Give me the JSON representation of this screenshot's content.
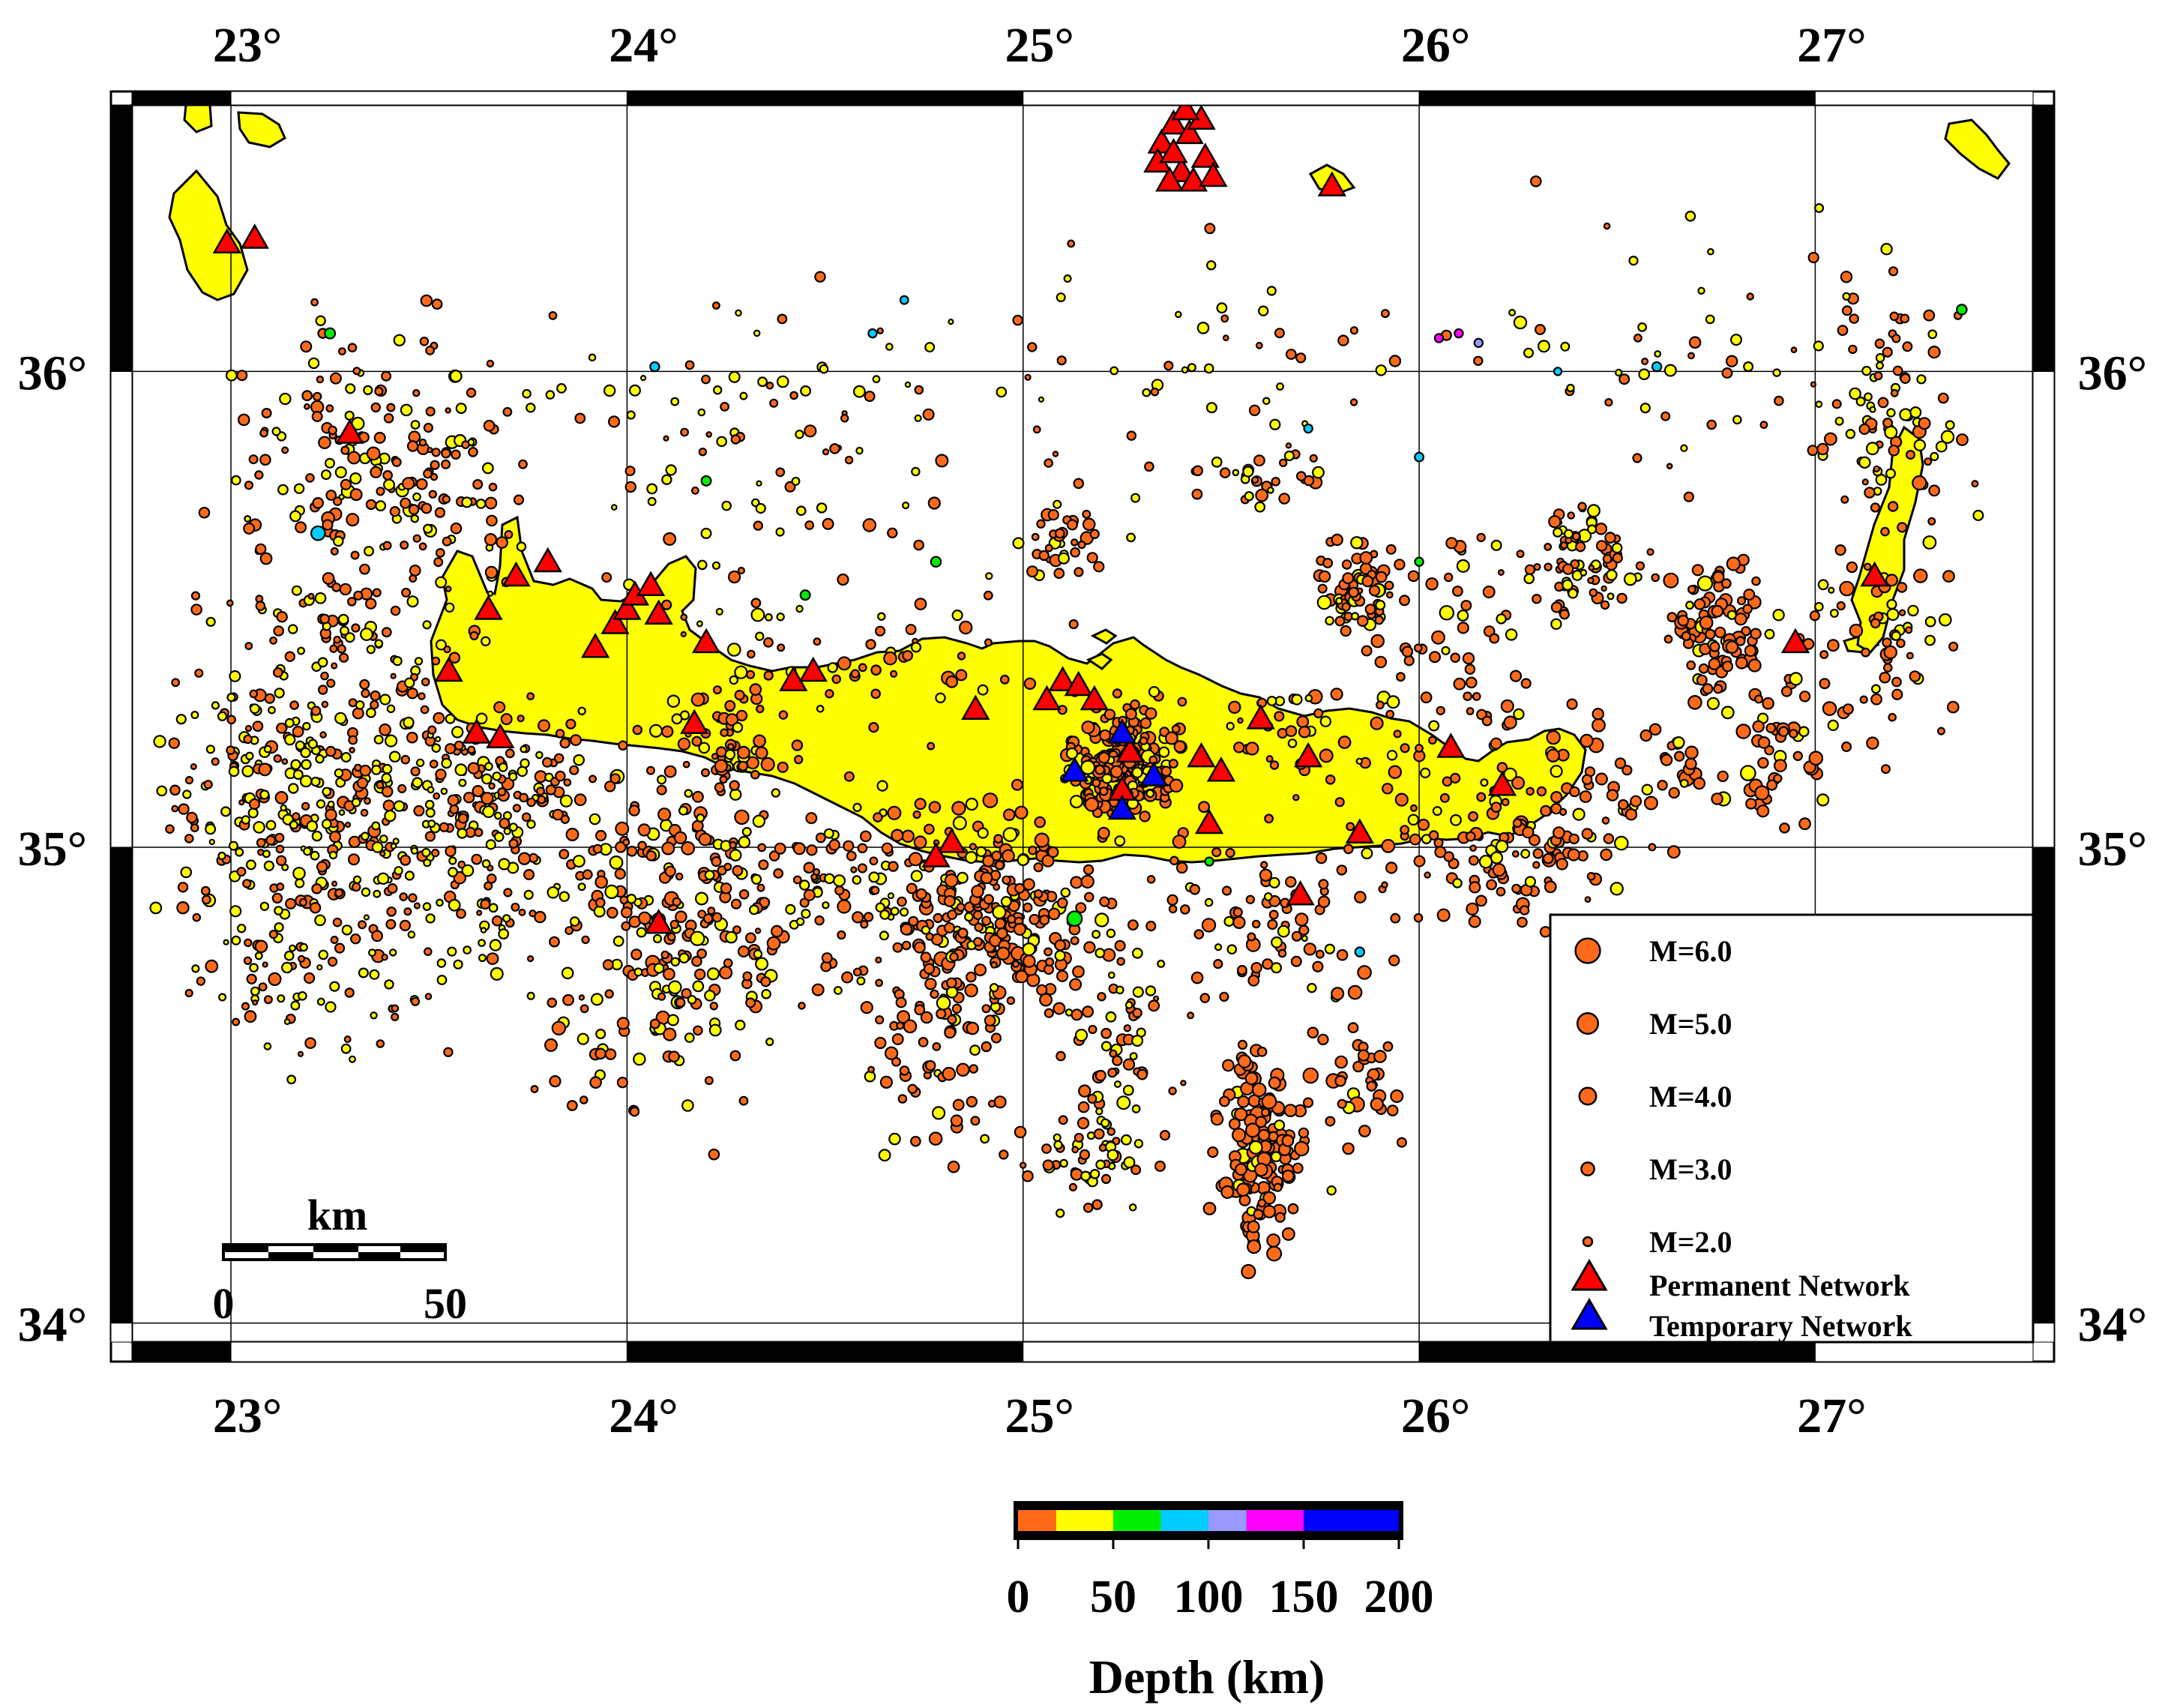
{
  "map": {
    "lon_range": [
      22.75,
      27.55
    ],
    "lat_range": [
      33.96,
      36.56
    ],
    "grid": true,
    "graticule_lon": [
      23,
      24,
      25,
      26,
      27
    ],
    "graticule_lat": [
      34,
      35,
      36
    ],
    "top_lon_labels": [
      "23°",
      "24°",
      "25°",
      "26°",
      "27°"
    ],
    "bottom_lon_labels": [
      "23°",
      "24°",
      "25°",
      "26°",
      "27°"
    ],
    "left_lat_labels": [
      "34°",
      "35°",
      "36°"
    ],
    "right_lat_labels": [
      "34°",
      "35°",
      "36°"
    ],
    "land_color": "#ffff00",
    "ocean_color": "#ffffff"
  },
  "scale_bar": {
    "unit": "km",
    "min_label": "0",
    "max_label": "50",
    "length_km": 50
  },
  "legend": {
    "magnitudes": [
      {
        "label": "M=6.0",
        "magnitude": 6.0
      },
      {
        "label": "M=5.0",
        "magnitude": 5.0
      },
      {
        "label": "M=4.0",
        "magnitude": 4.0
      },
      {
        "label": "M=3.0",
        "magnitude": 3.0
      },
      {
        "label": "M=2.0",
        "magnitude": 2.0
      }
    ],
    "stations": [
      {
        "label": "Permanent Network",
        "color": "#ff0000"
      },
      {
        "label": "Temporary Network",
        "color": "#0000ff"
      }
    ]
  },
  "colorbar": {
    "title": "Depth (km)",
    "segments": [
      {
        "from": 0,
        "to": 20,
        "color": "#ff6a1a"
      },
      {
        "from": 20,
        "to": 50,
        "color": "#ffff00"
      },
      {
        "from": 50,
        "to": 75,
        "color": "#00ee00"
      },
      {
        "from": 75,
        "to": 100,
        "color": "#00ccff"
      },
      {
        "from": 100,
        "to": 120,
        "color": "#9999ff"
      },
      {
        "from": 120,
        "to": 150,
        "color": "#ff00ff"
      },
      {
        "from": 150,
        "to": 200,
        "color": "#0000ff"
      }
    ],
    "tick_values": [
      0,
      50,
      100,
      150,
      200
    ],
    "tick_labels": [
      "0",
      "50",
      "100",
      "150",
      "200"
    ]
  },
  "depth_colors": {
    "shallow": "#ff6a1a",
    "intermediate": "#ffff00",
    "green": "#00ee00",
    "cyan": "#00ccff",
    "violet": "#9999ff",
    "magenta": "#ff00ff",
    "deep": "#0000ff"
  },
  "earthquake_clusters": [
    {
      "lon": 23.2,
      "lat": 35.1,
      "spread_lon": 0.3,
      "spread_lat": 0.28,
      "count": 330,
      "yellow_ratio": 0.5,
      "mag_mean": 3.0
    },
    {
      "lon": 23.35,
      "lat": 35.55,
      "spread_lon": 0.3,
      "spread_lat": 0.35,
      "count": 180,
      "yellow_ratio": 0.4,
      "mag_mean": 3.0
    },
    {
      "lon": 23.6,
      "lat": 34.95,
      "spread_lon": 0.2,
      "spread_lat": 0.2,
      "count": 110,
      "yellow_ratio": 0.65,
      "mag_mean": 2.8
    },
    {
      "lon": 23.4,
      "lat": 35.85,
      "spread_lon": 0.35,
      "spread_lat": 0.2,
      "count": 120,
      "yellow_ratio": 0.2,
      "mag_mean": 3.1
    },
    {
      "lon": 24.1,
      "lat": 34.85,
      "spread_lon": 0.28,
      "spread_lat": 0.3,
      "count": 290,
      "yellow_ratio": 0.35,
      "mag_mean": 3.3
    },
    {
      "lon": 24.25,
      "lat": 35.22,
      "spread_lon": 0.12,
      "spread_lat": 0.1,
      "count": 45,
      "yellow_ratio": 0.2,
      "mag_mean": 3.2
    },
    {
      "lon": 23.7,
      "lat": 35.15,
      "spread_lon": 0.2,
      "spread_lat": 0.1,
      "count": 80,
      "yellow_ratio": 0.35,
      "mag_mean": 3.0
    },
    {
      "lon": 24.55,
      "lat": 34.9,
      "spread_lon": 0.25,
      "spread_lat": 0.2,
      "count": 110,
      "yellow_ratio": 0.3,
      "mag_mean": 3.1
    },
    {
      "lon": 24.95,
      "lat": 34.85,
      "spread_lon": 0.22,
      "spread_lat": 0.18,
      "count": 270,
      "yellow_ratio": 0.2,
      "mag_mean": 3.4
    },
    {
      "lon": 25.25,
      "lat": 35.18,
      "spread_lon": 0.1,
      "spread_lat": 0.1,
      "count": 220,
      "yellow_ratio": 0.15,
      "mag_mean": 3.3
    },
    {
      "lon": 24.75,
      "lat": 34.55,
      "spread_lon": 0.15,
      "spread_lat": 0.15,
      "count": 50,
      "yellow_ratio": 0.15,
      "mag_mean": 3.3
    },
    {
      "lon": 25.25,
      "lat": 34.55,
      "spread_lon": 0.12,
      "spread_lat": 0.25,
      "count": 80,
      "yellow_ratio": 0.35,
      "mag_mean": 3.0
    },
    {
      "lon": 25.6,
      "lat": 34.35,
      "spread_lon": 0.08,
      "spread_lat": 0.18,
      "count": 150,
      "yellow_ratio": 0.1,
      "mag_mean": 3.6
    },
    {
      "lon": 25.85,
      "lat": 34.5,
      "spread_lon": 0.1,
      "spread_lat": 0.15,
      "count": 40,
      "yellow_ratio": 0.1,
      "mag_mean": 3.6
    },
    {
      "lon": 25.6,
      "lat": 34.85,
      "spread_lon": 0.25,
      "spread_lat": 0.15,
      "count": 80,
      "yellow_ratio": 0.2,
      "mag_mean": 3.2
    },
    {
      "lon": 25.85,
      "lat": 35.55,
      "spread_lon": 0.08,
      "spread_lat": 0.08,
      "count": 70,
      "yellow_ratio": 0.2,
      "mag_mean": 3.2
    },
    {
      "lon": 26.2,
      "lat": 35.0,
      "spread_lon": 0.25,
      "spread_lat": 0.15,
      "count": 120,
      "yellow_ratio": 0.2,
      "mag_mean": 3.3
    },
    {
      "lon": 26.4,
      "lat": 35.6,
      "spread_lon": 0.12,
      "spread_lat": 0.1,
      "count": 80,
      "yellow_ratio": 0.35,
      "mag_mean": 3.1
    },
    {
      "lon": 26.75,
      "lat": 35.45,
      "spread_lon": 0.1,
      "spread_lat": 0.12,
      "count": 90,
      "yellow_ratio": 0.15,
      "mag_mean": 3.5
    },
    {
      "lon": 26.55,
      "lat": 35.15,
      "spread_lon": 0.25,
      "spread_lat": 0.1,
      "count": 70,
      "yellow_ratio": 0.15,
      "mag_mean": 3.6
    },
    {
      "lon": 26.95,
      "lat": 35.25,
      "spread_lon": 0.12,
      "spread_lat": 0.15,
      "count": 50,
      "yellow_ratio": 0.15,
      "mag_mean": 3.6
    },
    {
      "lon": 27.2,
      "lat": 35.9,
      "spread_lon": 0.15,
      "spread_lat": 0.2,
      "count": 90,
      "yellow_ratio": 0.45,
      "mag_mean": 3.1
    },
    {
      "lon": 27.2,
      "lat": 35.45,
      "spread_lon": 0.15,
      "spread_lat": 0.2,
      "count": 60,
      "yellow_ratio": 0.3,
      "mag_mean": 3.3
    },
    {
      "lon": 25.1,
      "lat": 35.65,
      "spread_lon": 0.08,
      "spread_lat": 0.08,
      "count": 35,
      "yellow_ratio": 0.2,
      "mag_mean": 3.2
    },
    {
      "lon": 25.6,
      "lat": 35.78,
      "spread_lon": 0.15,
      "spread_lat": 0.05,
      "count": 30,
      "yellow_ratio": 0.3,
      "mag_mean": 3.1
    },
    {
      "lon": 24.3,
      "lat": 35.8,
      "spread_lon": 0.35,
      "spread_lat": 0.3,
      "count": 90,
      "yellow_ratio": 0.55,
      "mag_mean": 2.8
    },
    {
      "lon": 23.2,
      "lat": 34.7,
      "spread_lon": 0.25,
      "spread_lat": 0.15,
      "count": 60,
      "yellow_ratio": 0.6,
      "mag_mean": 2.8
    },
    {
      "lon": 24.6,
      "lat": 35.4,
      "spread_lon": 0.35,
      "spread_lat": 0.12,
      "count": 50,
      "yellow_ratio": 0.35,
      "mag_mean": 3.1
    },
    {
      "lon": 25.7,
      "lat": 35.25,
      "spread_lon": 0.25,
      "spread_lat": 0.15,
      "count": 50,
      "yellow_ratio": 0.25,
      "mag_mean": 3.2
    },
    {
      "lon": 26.1,
      "lat": 35.4,
      "spread_lon": 0.15,
      "spread_lat": 0.2,
      "count": 60,
      "yellow_ratio": 0.2,
      "mag_mean": 3.3
    },
    {
      "lon": 25.15,
      "lat": 34.35,
      "spread_lon": 0.12,
      "spread_lat": 0.08,
      "count": 35,
      "yellow_ratio": 0.4,
      "mag_mean": 3.0
    },
    {
      "lon": 25.8,
      "lat": 36.05,
      "spread_lon": 0.4,
      "spread_lat": 0.1,
      "count": 12,
      "yellow_ratio": 0.5,
      "mag_mean": 2.9
    },
    {
      "lon": 25.2,
      "lat": 35.95,
      "spread_lon": 0.7,
      "spread_lat": 0.3,
      "count": 60,
      "yellow_ratio": 0.5,
      "mag_mean": 2.8
    },
    {
      "lon": 26.7,
      "lat": 36.0,
      "spread_lon": 0.4,
      "spread_lat": 0.25,
      "count": 50,
      "yellow_ratio": 0.5,
      "mag_mean": 2.9
    }
  ],
  "deeper_events": [
    {
      "lon": 23.22,
      "lat": 35.66,
      "depth_band": "cyan",
      "magnitude": 4.4
    },
    {
      "lon": 24.07,
      "lat": 36.01,
      "depth_band": "cyan",
      "magnitude": 3.2
    },
    {
      "lon": 24.62,
      "lat": 36.08,
      "depth_band": "cyan",
      "magnitude": 3.0
    },
    {
      "lon": 24.7,
      "lat": 36.15,
      "depth_band": "cyan",
      "magnitude": 2.9
    },
    {
      "lon": 25.72,
      "lat": 35.88,
      "depth_band": "cyan",
      "magnitude": 3.0
    },
    {
      "lon": 26.0,
      "lat": 35.82,
      "depth_band": "cyan",
      "magnitude": 3.1
    },
    {
      "lon": 26.35,
      "lat": 36.0,
      "depth_band": "cyan",
      "magnitude": 2.8
    },
    {
      "lon": 26.6,
      "lat": 36.01,
      "depth_band": "cyan",
      "magnitude": 3.2
    },
    {
      "lon": 25.85,
      "lat": 34.78,
      "depth_band": "cyan",
      "magnitude": 3.2
    },
    {
      "lon": 26.05,
      "lat": 36.07,
      "depth_band": "magenta",
      "magnitude": 3.0
    },
    {
      "lon": 26.1,
      "lat": 36.08,
      "depth_band": "magenta",
      "magnitude": 3.0
    },
    {
      "lon": 26.15,
      "lat": 36.06,
      "depth_band": "violet",
      "magnitude": 3.0
    },
    {
      "lon": 25.13,
      "lat": 34.85,
      "depth_band": "green",
      "magnitude": 4.6
    },
    {
      "lon": 24.02,
      "lat": 35.96,
      "depth_band": "yellow",
      "magnitude": 3.5
    },
    {
      "lon": 25.47,
      "lat": 34.97,
      "depth_band": "green",
      "magnitude": 3.0
    },
    {
      "lon": 24.78,
      "lat": 35.6,
      "depth_band": "green",
      "magnitude": 3.4
    },
    {
      "lon": 24.45,
      "lat": 35.53,
      "depth_band": "green",
      "magnitude": 3.3
    },
    {
      "lon": 24.2,
      "lat": 35.77,
      "depth_band": "green",
      "magnitude": 3.3
    },
    {
      "lon": 23.25,
      "lat": 36.08,
      "depth_band": "green",
      "magnitude": 3.5
    },
    {
      "lon": 27.37,
      "lat": 36.13,
      "depth_band": "green",
      "magnitude": 3.4
    },
    {
      "lon": 26.0,
      "lat": 35.6,
      "depth_band": "green",
      "magnitude": 3.0
    }
  ],
  "stations_permanent": [
    [
      22.99,
      36.27
    ],
    [
      23.06,
      36.28
    ],
    [
      23.3,
      35.87
    ],
    [
      23.55,
      35.37
    ],
    [
      23.65,
      35.5
    ],
    [
      23.62,
      35.24
    ],
    [
      23.68,
      35.23
    ],
    [
      23.72,
      35.57
    ],
    [
      23.8,
      35.6
    ],
    [
      23.92,
      35.42
    ],
    [
      23.97,
      35.47
    ],
    [
      24.0,
      35.5
    ],
    [
      24.02,
      35.53
    ],
    [
      24.06,
      35.55
    ],
    [
      24.08,
      35.49
    ],
    [
      24.2,
      35.43
    ],
    [
      24.17,
      35.26
    ],
    [
      24.08,
      34.84
    ],
    [
      24.42,
      35.35
    ],
    [
      24.47,
      35.37
    ],
    [
      24.88,
      35.29
    ],
    [
      24.82,
      35.01
    ],
    [
      24.78,
      34.98
    ],
    [
      25.06,
      35.31
    ],
    [
      25.1,
      35.35
    ],
    [
      25.14,
      35.34
    ],
    [
      25.18,
      35.31
    ],
    [
      25.27,
      35.2
    ],
    [
      25.25,
      35.12
    ],
    [
      25.45,
      35.19
    ],
    [
      25.5,
      35.16
    ],
    [
      25.47,
      35.05
    ],
    [
      25.6,
      35.27
    ],
    [
      25.72,
      35.19
    ],
    [
      25.85,
      35.03
    ],
    [
      26.08,
      35.21
    ],
    [
      26.21,
      35.13
    ],
    [
      26.95,
      35.43
    ],
    [
      27.15,
      35.57
    ],
    [
      25.78,
      36.39
    ],
    [
      25.35,
      36.48
    ],
    [
      25.38,
      36.52
    ],
    [
      25.42,
      36.5
    ],
    [
      25.46,
      36.45
    ],
    [
      25.34,
      36.44
    ],
    [
      25.4,
      36.42
    ],
    [
      25.43,
      36.4
    ],
    [
      25.37,
      36.4
    ],
    [
      25.45,
      36.53
    ],
    [
      25.41,
      36.55
    ],
    [
      25.38,
      36.46
    ],
    [
      25.48,
      36.41
    ],
    [
      25.7,
      34.9
    ]
  ],
  "stations_temporary": [
    [
      25.25,
      35.24
    ],
    [
      25.13,
      35.16
    ],
    [
      25.33,
      35.15
    ],
    [
      25.25,
      35.08
    ]
  ]
}
